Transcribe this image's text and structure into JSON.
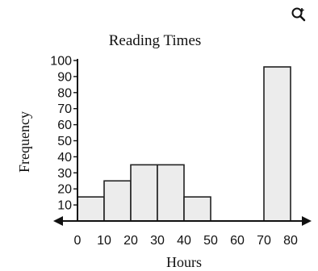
{
  "chart_data": {
    "type": "bar",
    "title": "Reading Times",
    "xlabel": "Hours",
    "ylabel": "Frequency",
    "bins": [
      {
        "from": 0,
        "to": 10,
        "value": 15
      },
      {
        "from": 10,
        "to": 20,
        "value": 25
      },
      {
        "from": 20,
        "to": 30,
        "value": 35
      },
      {
        "from": 30,
        "to": 40,
        "value": 35
      },
      {
        "from": 40,
        "to": 50,
        "value": 15
      },
      {
        "from": 70,
        "to": 80,
        "value": 96
      }
    ],
    "x_ticks": [
      "0",
      "10",
      "20",
      "30",
      "40",
      "50",
      "60",
      "70",
      "80"
    ],
    "y_ticks": [
      "10",
      "20",
      "30",
      "40",
      "50",
      "60",
      "70",
      "80",
      "90",
      "100"
    ],
    "xlim": [
      0,
      80
    ],
    "ylim": [
      0,
      100
    ],
    "grid": false,
    "colors": {
      "bar_fill": "#ececec",
      "bar_stroke": "#222222",
      "axis": "#111111"
    }
  },
  "toolbar": {
    "zoom_icon": "magnify-plus-icon"
  }
}
